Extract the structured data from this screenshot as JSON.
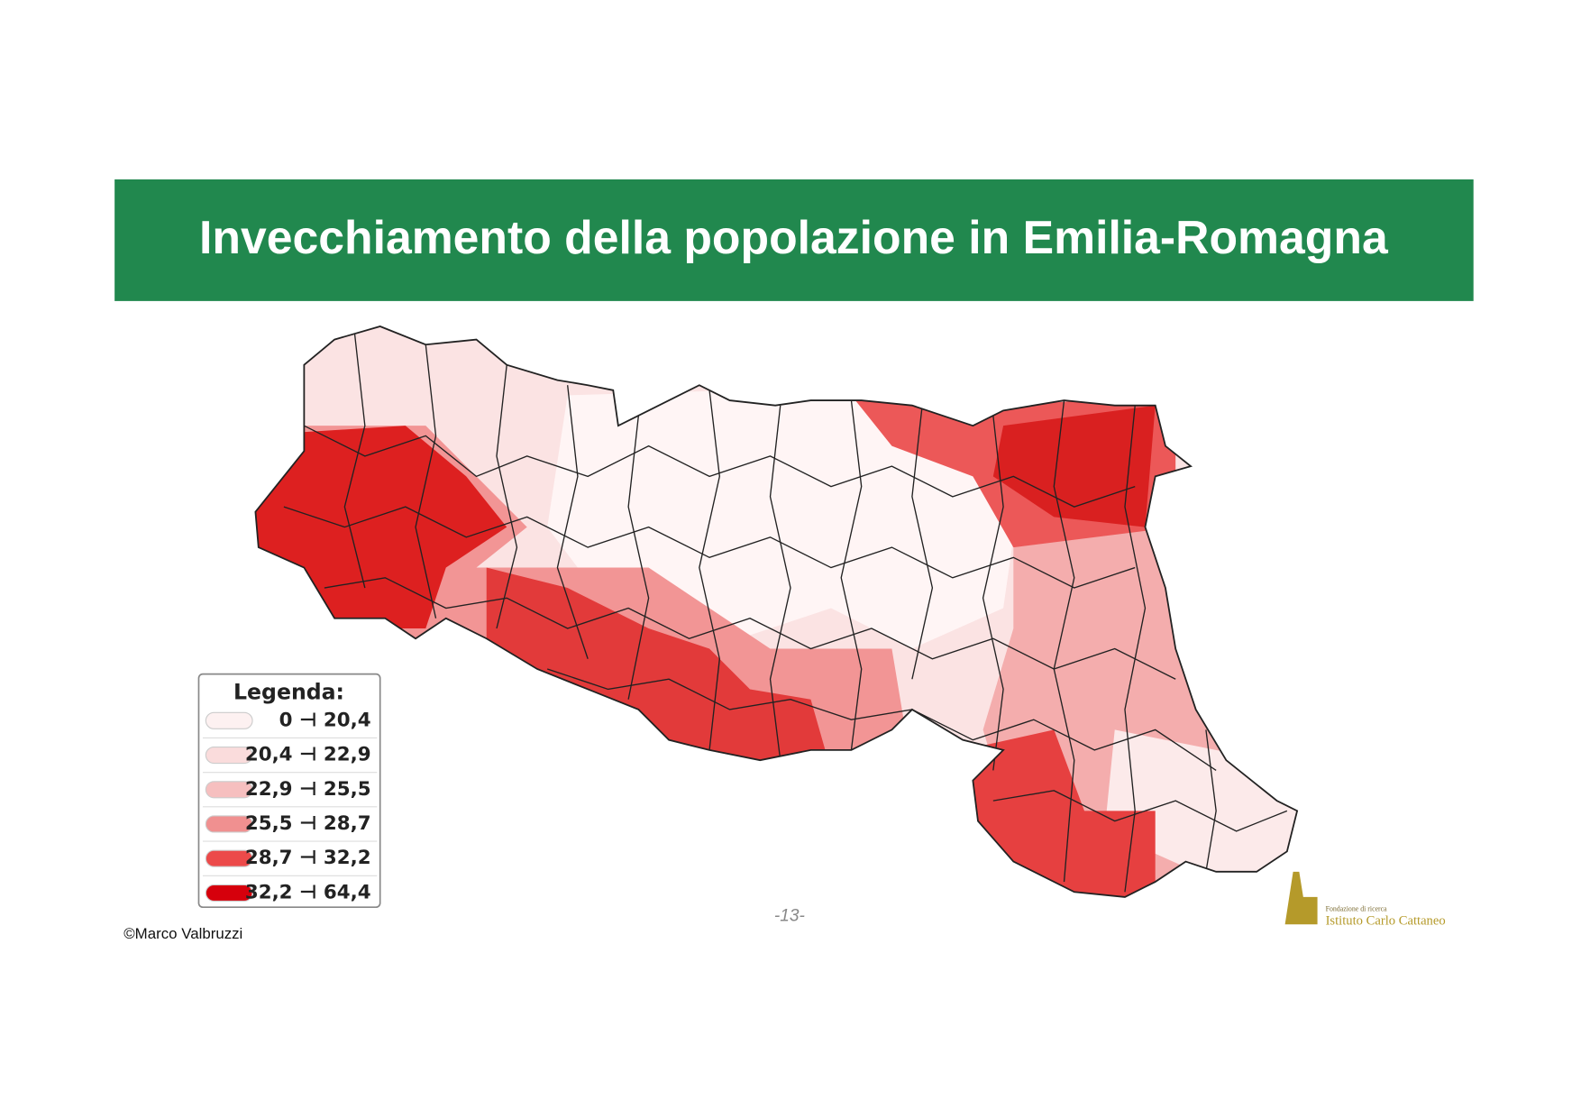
{
  "header": {
    "title": "Invecchiamento della popolazione in Emilia-Romagna"
  },
  "legend": {
    "title": "Legenda:",
    "items": [
      {
        "label": "0 ⊣ 20,4",
        "color": "#fdf1f1"
      },
      {
        "label": "20,4 ⊣ 22,9",
        "color": "#fadcdc"
      },
      {
        "label": "22,9 ⊣ 25,5",
        "color": "#f6bfbf"
      },
      {
        "label": "25,5 ⊣ 28,7",
        "color": "#f09090"
      },
      {
        "label": "28,7 ⊣ 32,2",
        "color": "#ec4a4a"
      },
      {
        "label": "32,2 ⊣ 64,4",
        "color": "#d6000c"
      }
    ]
  },
  "footer": {
    "credit": "©Marco Valbruzzi",
    "page": "-13-",
    "logo_small": "Fondazione di ricerca",
    "logo_name": "Istituto Carlo Cattaneo"
  }
}
